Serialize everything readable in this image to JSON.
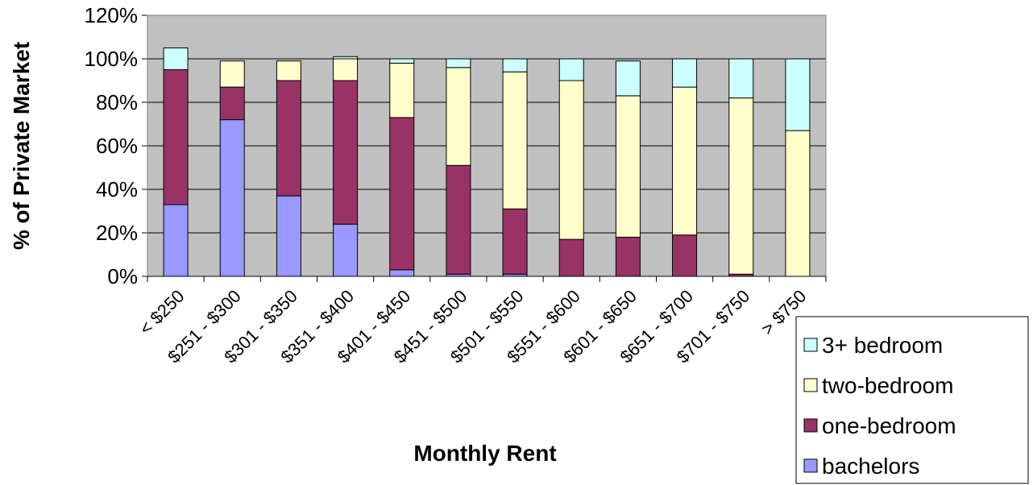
{
  "chart_data": {
    "type": "stacked_bar",
    "x_label": "Monthly Rent",
    "y_label": "% of Private Market",
    "categories": [
      "< $250",
      "$251 - $300",
      "$301 - $350",
      "$351 - $400",
      "$401 - $450",
      "$451 - $500",
      "$501 - $550",
      "$551 - $600",
      "$601 - $650",
      "$651 - $700",
      "$701 - $750",
      "> $750"
    ],
    "series": [
      {
        "name": "bachelors",
        "color": "#9999ff",
        "values": [
          33,
          72,
          37,
          24,
          3,
          1,
          1,
          0,
          0,
          0,
          0,
          0
        ]
      },
      {
        "name": "one-bedroom",
        "color": "#993366",
        "values": [
          62,
          15,
          53,
          66,
          70,
          50,
          30,
          17,
          18,
          19,
          1,
          0
        ]
      },
      {
        "name": "two-bedroom",
        "color": "#ffffcc",
        "values": [
          0,
          12,
          9,
          10,
          25,
          45,
          63,
          73,
          65,
          68,
          81,
          67
        ]
      },
      {
        "name": "3+ bedroom",
        "color": "#ccffff",
        "values": [
          10,
          0,
          0,
          1,
          2,
          4,
          6,
          10,
          16,
          13,
          18,
          33
        ]
      }
    ],
    "ylim": [
      0,
      120
    ],
    "yticks": [
      {
        "value": 0,
        "label": "0%"
      },
      {
        "value": 20,
        "label": "20%"
      },
      {
        "value": 40,
        "label": "40%"
      },
      {
        "value": 60,
        "label": "60%"
      },
      {
        "value": 80,
        "label": "80%"
      },
      {
        "value": 100,
        "label": "100%"
      },
      {
        "value": 120,
        "label": "120%"
      }
    ],
    "grid": true,
    "plot_background": "#c0c0c0",
    "legend": "bottom-right"
  }
}
